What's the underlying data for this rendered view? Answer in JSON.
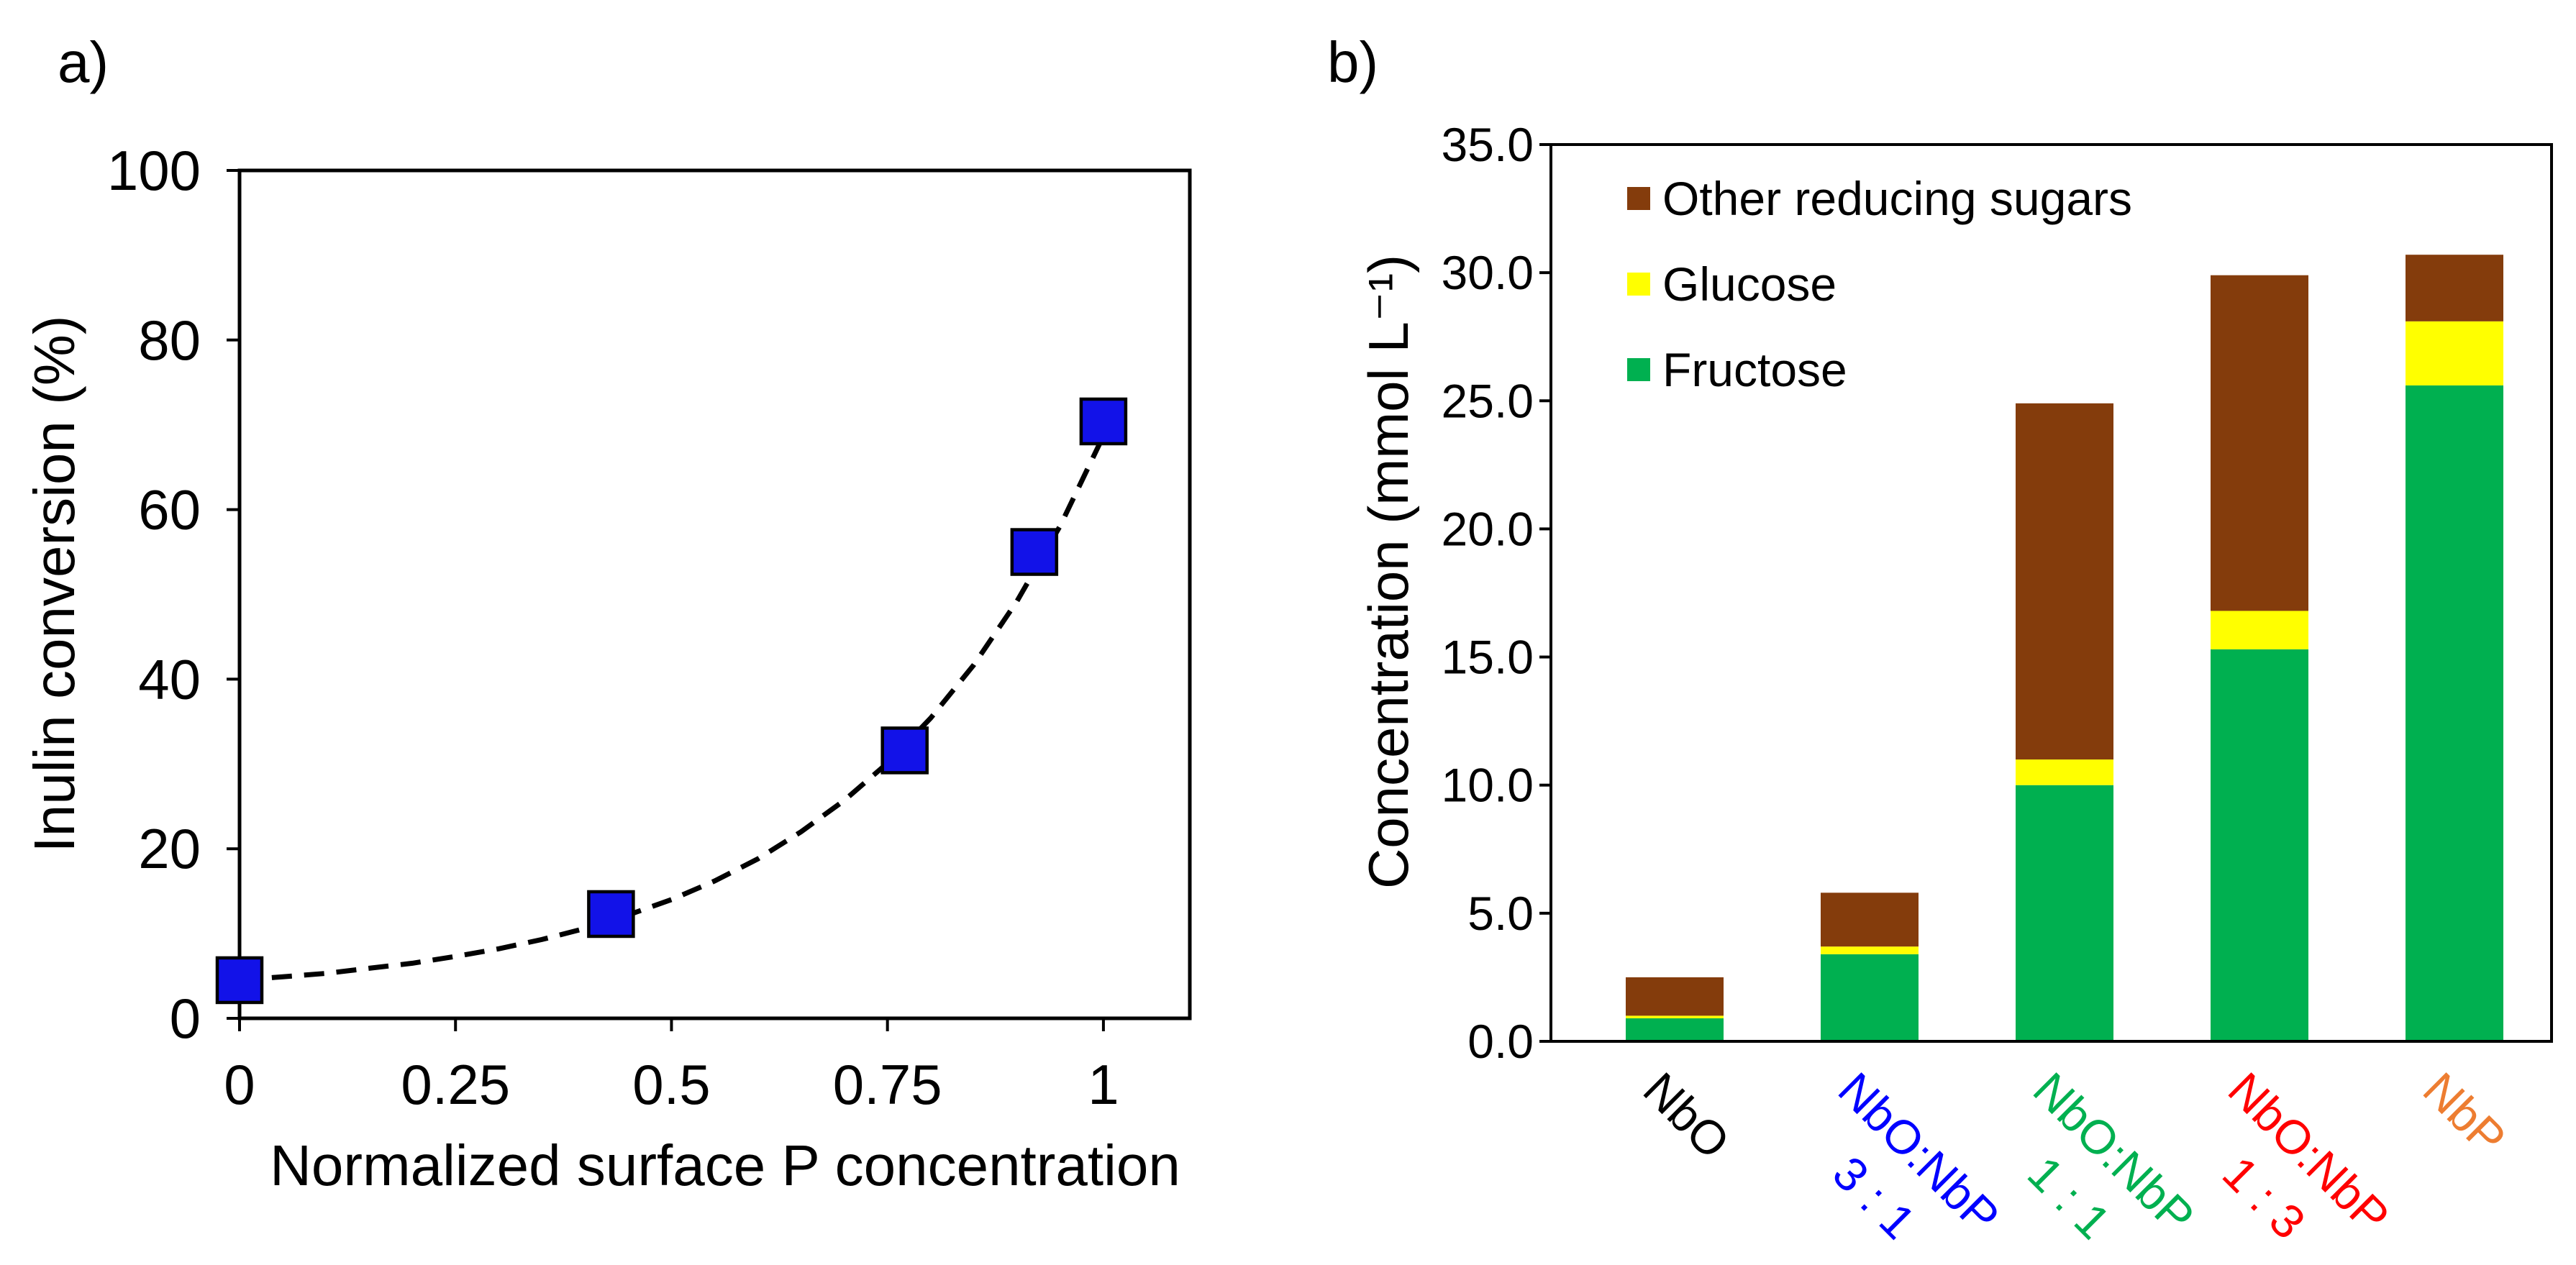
{
  "chart_data": [
    {
      "type": "scatter",
      "panel_label": "a)",
      "xlabel": "Normalized surface P concentration",
      "ylabel": "Inulin conversion (%)",
      "xlim": [
        0,
        1.1
      ],
      "ylim": [
        0,
        100
      ],
      "xticks": [
        0,
        0.25,
        0.5,
        0.75,
        1
      ],
      "xtick_labels": [
        "0",
        "0.25",
        "0.5",
        "0.75",
        "1"
      ],
      "yticks": [
        0,
        20,
        40,
        60,
        80,
        100
      ],
      "ytick_labels": [
        "0",
        "20",
        "40",
        "60",
        "80",
        "100"
      ],
      "grid": false,
      "series": [
        {
          "color": "#1212E8",
          "x": [
            0,
            0.43,
            0.77,
            0.92,
            1.0
          ],
          "y": [
            4.5,
            12.3,
            31.6,
            55.0,
            70.4
          ]
        }
      ],
      "fit_curve": {
        "color": "#000000",
        "x": [
          0,
          0.05,
          0.1,
          0.15,
          0.2,
          0.25,
          0.3,
          0.35,
          0.4,
          0.45,
          0.5,
          0.55,
          0.6,
          0.65,
          0.7,
          0.75,
          0.8,
          0.85,
          0.9,
          0.95,
          1.0
        ],
        "y": [
          4.5,
          4.9,
          5.3,
          5.9,
          6.5,
          7.3,
          8.2,
          9.3,
          10.6,
          12.2,
          14.0,
          16.2,
          18.8,
          22.0,
          25.7,
          30.1,
          35.4,
          41.7,
          49.2,
          58.1,
          68.7
        ]
      }
    },
    {
      "type": "bar",
      "stacked": true,
      "panel_label": "b)",
      "ylabel": "Concentration (mmol L⁻¹)",
      "ylim": [
        0,
        35
      ],
      "yticks": [
        0,
        5,
        10,
        15,
        20,
        25,
        30,
        35
      ],
      "ytick_labels": [
        "0.0",
        "5.0",
        "10.0",
        "15.0",
        "20.0",
        "25.0",
        "30.0",
        "35.0"
      ],
      "grid": false,
      "categories": [
        [
          "NbO"
        ],
        [
          "NbO:NbP",
          "3 : 1"
        ],
        [
          "NbO:NbP",
          "1 : 1"
        ],
        [
          "NbO:NbP",
          "1 : 3"
        ],
        [
          "NbP"
        ]
      ],
      "category_colors": [
        "#000000",
        "#0000FF",
        "#00B050",
        "#FF0000",
        "#ED7D31"
      ],
      "series": [
        {
          "name": "Fructose",
          "color": "#00B050",
          "values": [
            0.9,
            3.4,
            10.0,
            15.3,
            25.6
          ]
        },
        {
          "name": "Glucose",
          "color": "#FFFF00",
          "values": [
            0.1,
            0.3,
            1.0,
            1.5,
            2.5
          ]
        },
        {
          "name": "Other reducing sugars",
          "color": "#843C0C",
          "values": [
            1.5,
            2.1,
            13.9,
            13.1,
            2.6
          ]
        }
      ],
      "legend_order": [
        2,
        1,
        0
      ]
    }
  ]
}
